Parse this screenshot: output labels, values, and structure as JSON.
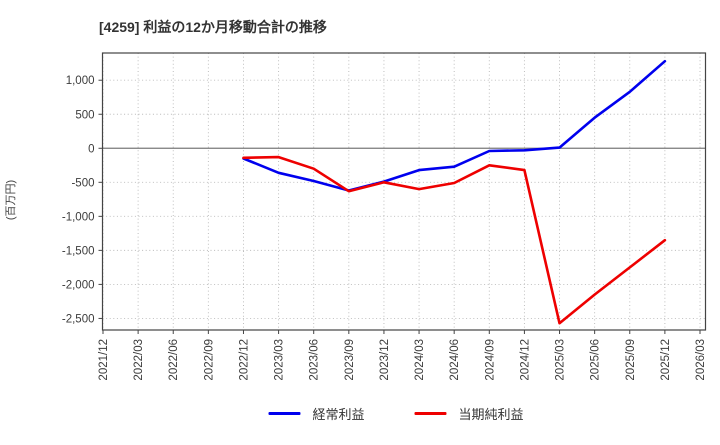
{
  "chart_data": {
    "type": "line",
    "title": "[4259]  利益の12か月移動合計の推移",
    "ylabel": "(百万円)",
    "x_labels": [
      "2021/12",
      "2022/03",
      "2022/06",
      "2022/09",
      "2022/12",
      "2023/03",
      "2023/06",
      "2023/09",
      "2023/12",
      "2024/03",
      "2024/06",
      "2024/09",
      "2024/12",
      "2025/03",
      "2025/06",
      "2025/09",
      "2025/12",
      "2026/03"
    ],
    "yticks": [
      1000,
      500,
      0,
      -500,
      -1000,
      -1500,
      -2000,
      -2500
    ],
    "ylim": [
      -2670,
      1400
    ],
    "grid": true,
    "legend_position": "bottom",
    "series": [
      {
        "name": "経常利益",
        "color": "#0000ee",
        "start_index": 4,
        "values": [
          -150,
          -360,
          -480,
          -620,
          -490,
          -320,
          -270,
          -40,
          -30,
          10,
          450,
          830,
          1280
        ]
      },
      {
        "name": "当期純利益",
        "color": "#ee0000",
        "start_index": 4,
        "values": [
          -140,
          -130,
          -300,
          -630,
          -500,
          -600,
          -510,
          -250,
          -320,
          -2570,
          -2150,
          -1750,
          -1350
        ]
      }
    ]
  }
}
